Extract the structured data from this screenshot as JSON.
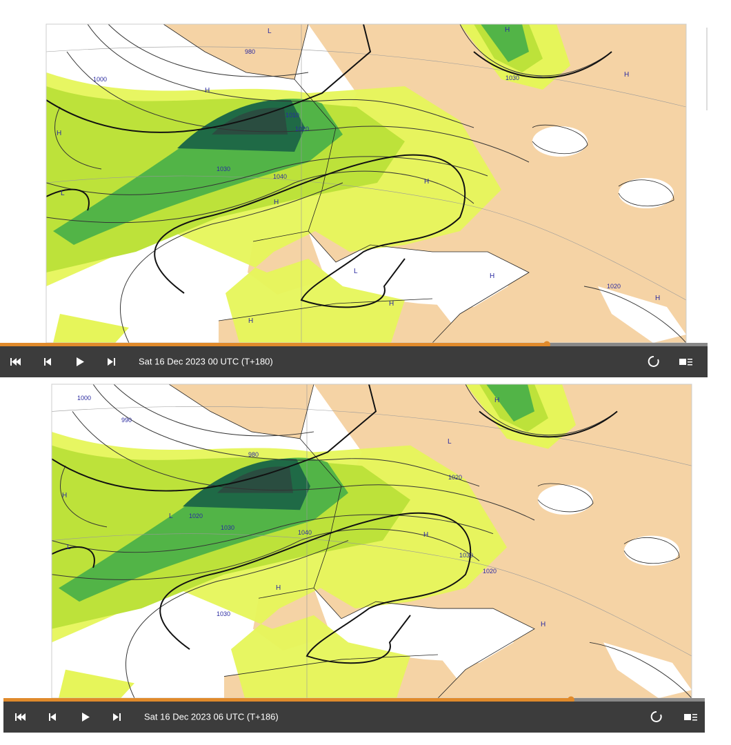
{
  "panels": [
    {
      "timestamp": "Sat 16 Dec 2023 00 UTC (T+180)",
      "map_labels": [
        "980",
        "1000",
        "1010",
        "1020",
        "1030",
        "1040",
        "1030",
        "1020",
        "H",
        "H",
        "H",
        "H",
        "H",
        "H",
        "H",
        "H",
        "H",
        "H",
        "L",
        "L",
        "L"
      ]
    },
    {
      "timestamp": "Sat 16 Dec 2023 06 UTC (T+186)",
      "map_labels": [
        "1000",
        "990",
        "980",
        "1020",
        "1030",
        "1040",
        "1020",
        "1030",
        "1030",
        "1020",
        "H",
        "H",
        "H",
        "H",
        "H",
        "L",
        "L",
        "L"
      ]
    }
  ]
}
